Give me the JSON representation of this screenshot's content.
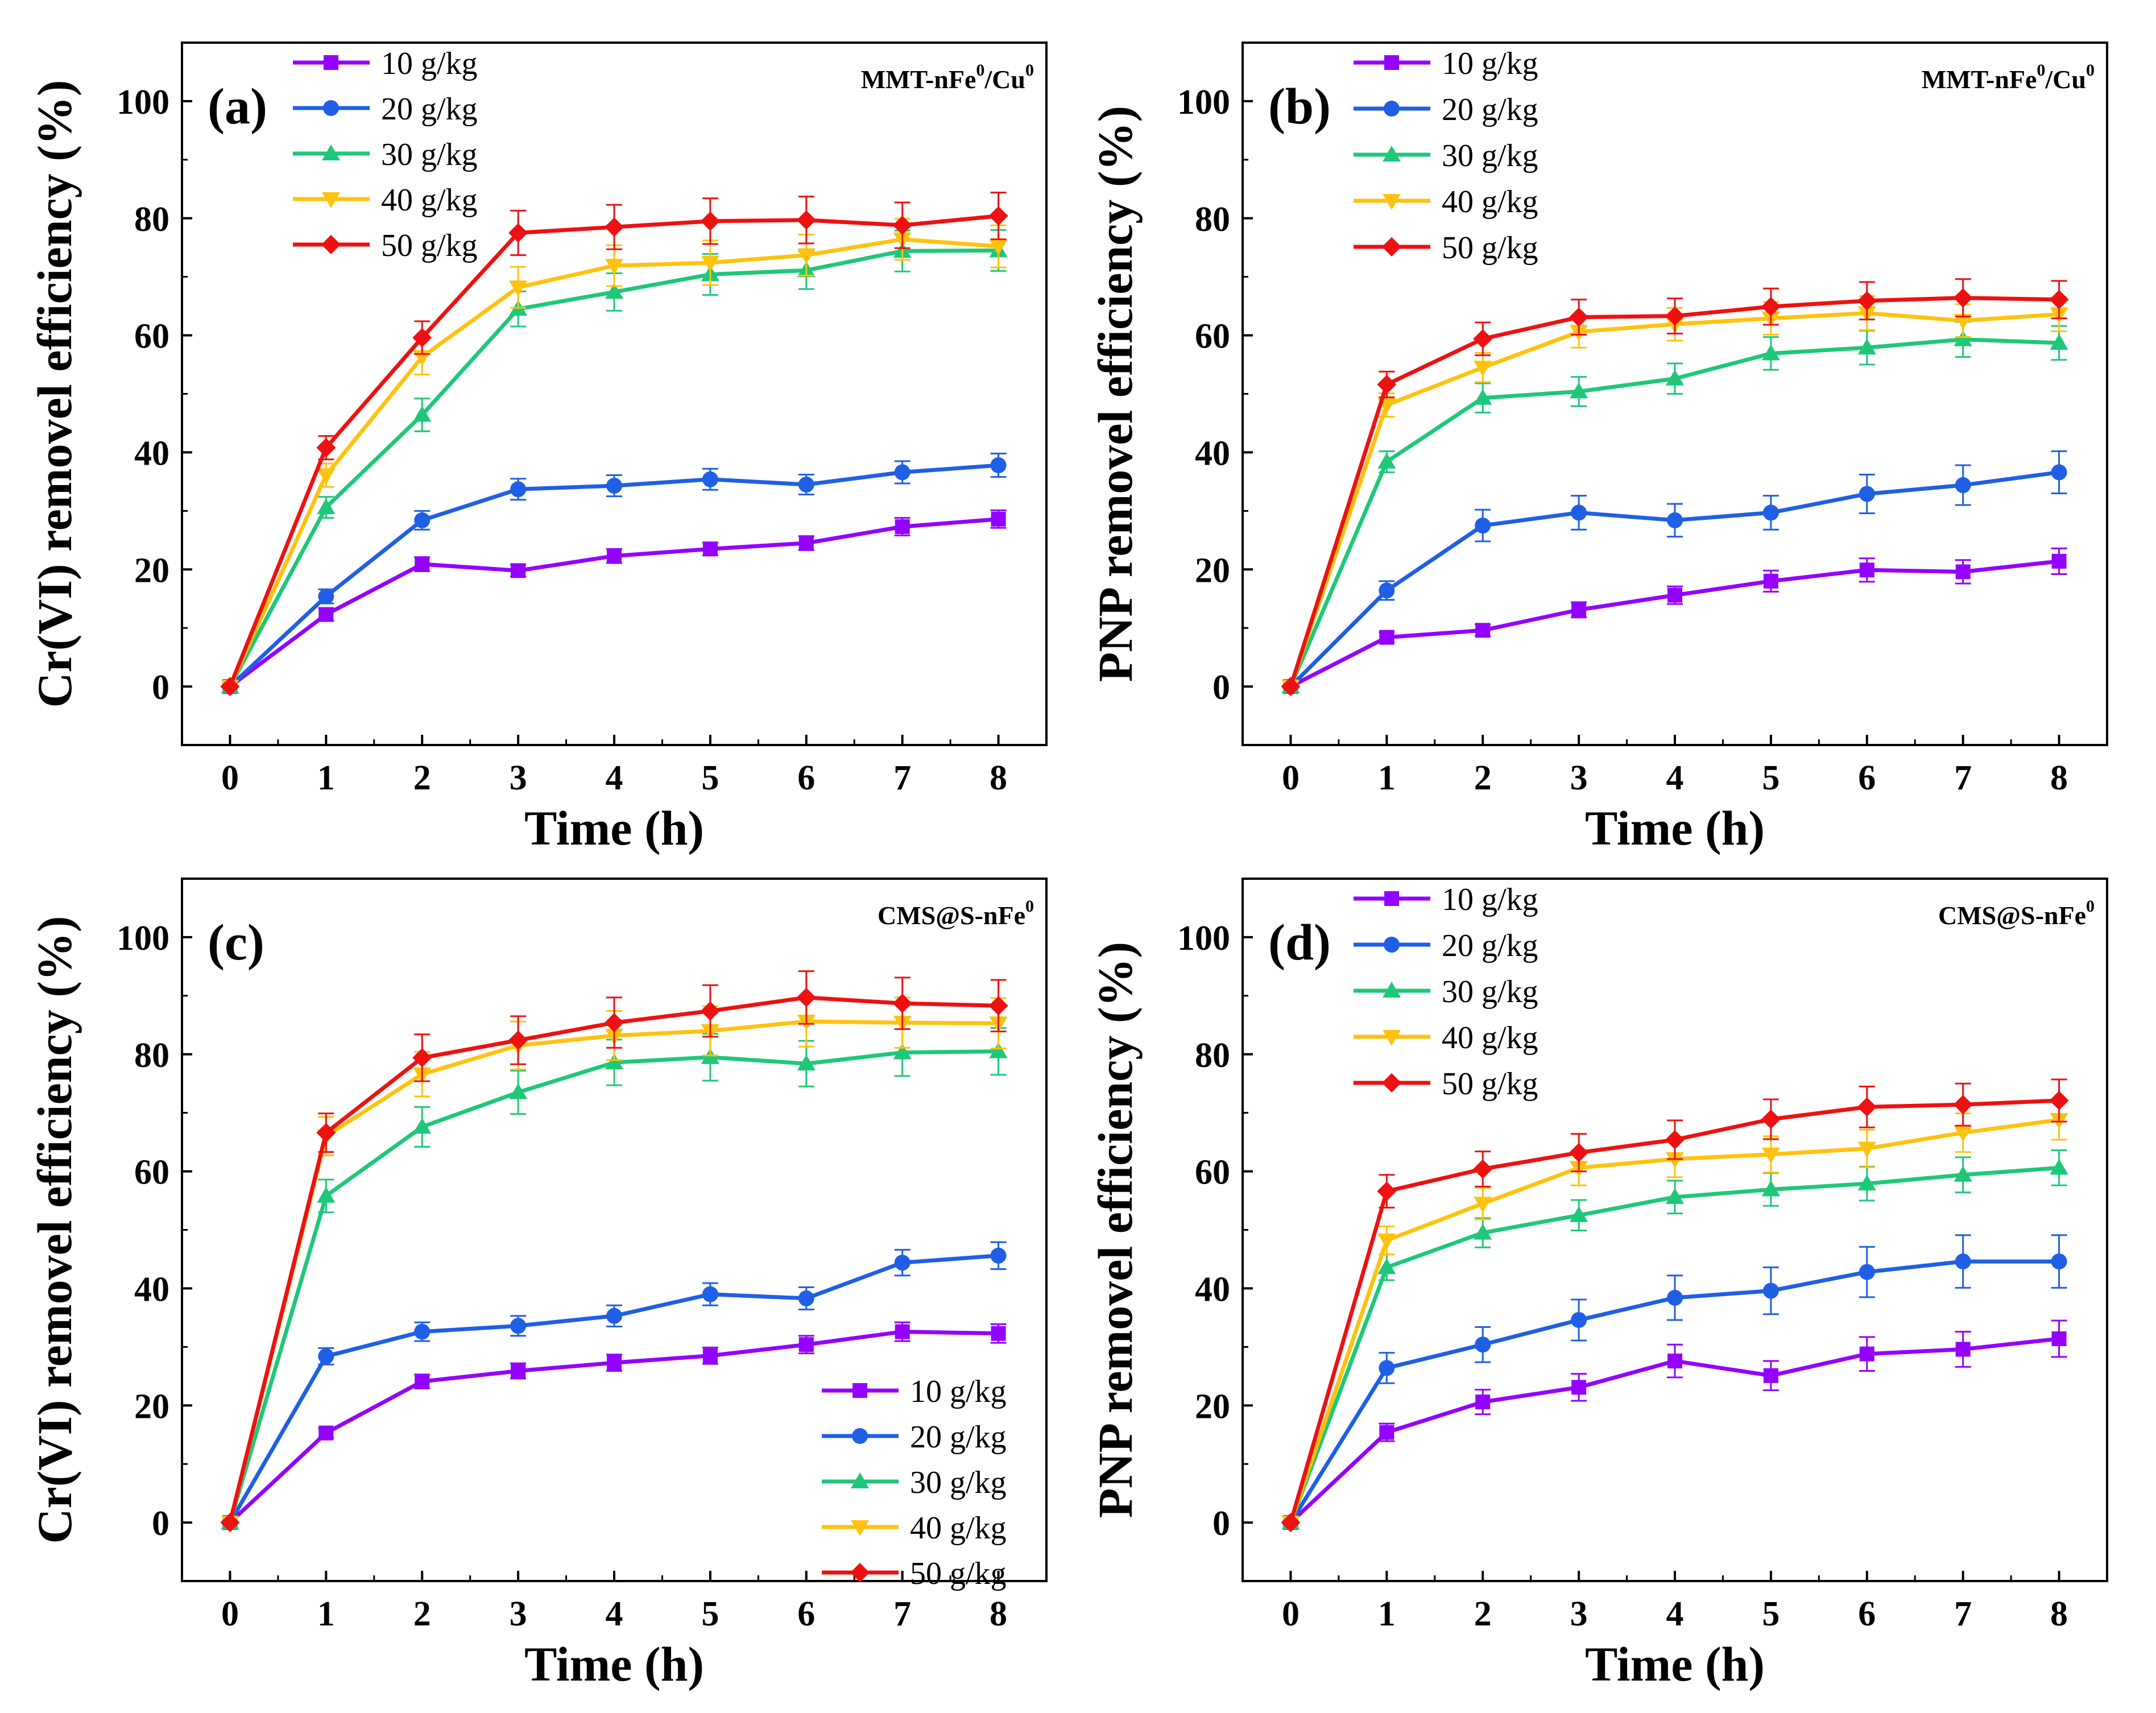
{
  "figure": {
    "legend_labels": [
      "10 g/kg",
      "20 g/kg",
      "30 g/kg",
      "40 g/kg",
      "50 g/kg"
    ],
    "series_colors": [
      "#9400ff",
      "#1f5fe6",
      "#1ec878",
      "#ffc20e",
      "#ee1111"
    ],
    "series_markers": [
      "square-marker",
      "circle-marker",
      "triangle-up-marker",
      "triangle-down-marker",
      "diamond-marker"
    ]
  },
  "panels": [
    {
      "letter": "(a)",
      "material": {
        "base": "MMT-nFe",
        "sup1": "0",
        "mid": "/Cu",
        "sup2": "0"
      },
      "chart_data": {
        "type": "line",
        "x": [
          0,
          1,
          2,
          3,
          4,
          5,
          6,
          7,
          8
        ],
        "xlabel": "Time (h)",
        "ylabel": "Cr(VI) removel efficiency (%)",
        "xlim": [
          -0.5,
          8.5
        ],
        "ylim": [
          -10,
          110
        ],
        "xticks": [
          0,
          1,
          2,
          3,
          4,
          5,
          6,
          7,
          8
        ],
        "yticks": [
          0,
          20,
          40,
          60,
          80,
          100
        ],
        "legend_position": "top-left",
        "series": [
          {
            "name": "10 g/kg",
            "values": [
              0,
              12.3,
              20.9,
              19.8,
              22.3,
              23.5,
              24.5,
              27.3,
              28.6
            ],
            "errors": [
              0,
              1.1,
              1.2,
              1.0,
              1.2,
              1.1,
              1.2,
              1.5,
              1.5
            ]
          },
          {
            "name": "20 g/kg",
            "values": [
              0,
              15.4,
              28.4,
              33.7,
              34.3,
              35.4,
              34.5,
              36.6,
              37.8
            ],
            "errors": [
              0,
              1.2,
              1.6,
              1.8,
              1.8,
              1.8,
              1.7,
              1.9,
              2.0
            ]
          },
          {
            "name": "30 g/kg",
            "values": [
              0,
              30.6,
              46.4,
              64.5,
              67.4,
              70.4,
              71.1,
              74.4,
              74.5
            ],
            "errors": [
              0,
              1.8,
              2.8,
              3.0,
              3.2,
              3.5,
              3.2,
              3.5,
              3.5
            ]
          },
          {
            "name": "40 g/kg",
            "values": [
              0,
              36.1,
              56.3,
              68.2,
              71.9,
              72.4,
              73.7,
              76.4,
              75.2
            ],
            "errors": [
              0,
              2.0,
              3.0,
              3.5,
              3.5,
              3.8,
              3.5,
              3.5,
              3.6
            ]
          },
          {
            "name": "50 g/kg",
            "values": [
              0,
              40.8,
              59.6,
              77.5,
              78.5,
              79.5,
              79.7,
              78.8,
              80.4
            ],
            "errors": [
              0,
              2.0,
              2.8,
              3.8,
              3.8,
              3.9,
              4.0,
              3.9,
              4.0
            ]
          }
        ]
      }
    },
    {
      "letter": "(b)",
      "material": {
        "base": "MMT-nFe",
        "sup1": "0",
        "mid": "/Cu",
        "sup2": "0"
      },
      "chart_data": {
        "type": "line",
        "x": [
          0,
          1,
          2,
          3,
          4,
          5,
          6,
          7,
          8
        ],
        "xlabel": "Time (h)",
        "ylabel": "PNP removel efficiency (%)",
        "xlim": [
          -0.5,
          8.5
        ],
        "ylim": [
          -10,
          110
        ],
        "xticks": [
          0,
          1,
          2,
          3,
          4,
          5,
          6,
          7,
          8
        ],
        "yticks": [
          0,
          20,
          40,
          60,
          80,
          100
        ],
        "legend_position": "top-left",
        "series": [
          {
            "name": "10 g/kg",
            "values": [
              0,
              8.4,
              9.6,
              13.1,
              15.6,
              18.0,
              19.9,
              19.6,
              21.4
            ],
            "errors": [
              0,
              0.9,
              1.0,
              1.3,
              1.5,
              1.8,
              2.0,
              2.0,
              2.2
            ]
          },
          {
            "name": "20 g/kg",
            "values": [
              0,
              16.4,
              27.5,
              29.7,
              28.4,
              29.7,
              32.9,
              34.4,
              36.6
            ],
            "errors": [
              0,
              1.6,
              2.7,
              2.9,
              2.8,
              2.9,
              3.3,
              3.4,
              3.6
            ]
          },
          {
            "name": "30 g/kg",
            "values": [
              0,
              38.4,
              49.3,
              50.4,
              52.6,
              56.9,
              57.9,
              59.3,
              58.7
            ],
            "errors": [
              0,
              1.8,
              2.5,
              2.5,
              2.6,
              2.8,
              2.9,
              3.0,
              2.9
            ]
          },
          {
            "name": "40 g/kg",
            "values": [
              0,
              48.1,
              54.5,
              60.6,
              61.9,
              62.9,
              63.8,
              62.5,
              63.6
            ],
            "errors": [
              0,
              2.0,
              2.5,
              2.7,
              2.8,
              2.8,
              2.9,
              2.8,
              2.9
            ]
          },
          {
            "name": "50 g/kg",
            "values": [
              0,
              51.6,
              59.4,
              63.1,
              63.3,
              64.9,
              65.9,
              66.4,
              66.1
            ],
            "errors": [
              0,
              2.2,
              2.8,
              3.0,
              3.0,
              3.1,
              3.2,
              3.2,
              3.2
            ]
          }
        ]
      }
    },
    {
      "letter": "(c)",
      "material": {
        "base": "CMS@S-nFe",
        "sup1": "0",
        "mid": "",
        "sup2": ""
      },
      "chart_data": {
        "type": "line",
        "x": [
          0,
          1,
          2,
          3,
          4,
          5,
          6,
          7,
          8
        ],
        "xlabel": "Time (h)",
        "ylabel": "Cr(VI) removel efficiency (%)",
        "xlim": [
          -0.5,
          8.5
        ],
        "ylim": [
          -10,
          110
        ],
        "xticks": [
          0,
          1,
          2,
          3,
          4,
          5,
          6,
          7,
          8
        ],
        "yticks": [
          0,
          20,
          40,
          60,
          80,
          100
        ],
        "legend_position": "bottom-right",
        "series": [
          {
            "name": "10 g/kg",
            "values": [
              0,
              15.3,
              24.1,
              25.9,
              27.3,
              28.5,
              30.4,
              32.6,
              32.3
            ],
            "errors": [
              0,
              0.8,
              1.2,
              1.3,
              1.4,
              1.4,
              1.5,
              1.6,
              1.6
            ]
          },
          {
            "name": "20 g/kg",
            "values": [
              0,
              28.4,
              32.6,
              33.6,
              35.3,
              39.0,
              38.3,
              44.4,
              45.6
            ],
            "errors": [
              0,
              1.4,
              1.6,
              1.7,
              1.8,
              1.9,
              1.9,
              2.2,
              2.3
            ]
          },
          {
            "name": "30 g/kg",
            "values": [
              0,
              55.8,
              67.6,
              73.5,
              78.6,
              79.5,
              78.4,
              80.3,
              80.5
            ],
            "errors": [
              0,
              2.8,
              3.4,
              3.7,
              3.9,
              4.0,
              3.9,
              4.0,
              4.0
            ]
          },
          {
            "name": "40 g/kg",
            "values": [
              0,
              66.0,
              76.6,
              81.5,
              83.2,
              84.0,
              85.6,
              85.4,
              85.3
            ],
            "errors": [
              0,
              3.3,
              3.8,
              4.1,
              4.2,
              4.2,
              4.3,
              4.3,
              4.3
            ]
          },
          {
            "name": "50 g/kg",
            "values": [
              0,
              66.6,
              79.4,
              82.4,
              85.4,
              87.4,
              89.7,
              88.7,
              88.3
            ],
            "errors": [
              0,
              3.3,
              4.0,
              4.1,
              4.3,
              4.4,
              4.5,
              4.4,
              4.4
            ]
          }
        ]
      }
    },
    {
      "letter": "(d)",
      "material": {
        "base": "CMS@S-nFe",
        "sup1": "0",
        "mid": "",
        "sup2": ""
      },
      "chart_data": {
        "type": "line",
        "x": [
          0,
          1,
          2,
          3,
          4,
          5,
          6,
          7,
          8
        ],
        "xlabel": "Time (h)",
        "ylabel": "PNP removel efficiency (%)",
        "xlim": [
          -0.5,
          8.5
        ],
        "ylim": [
          -10,
          110
        ],
        "xticks": [
          0,
          1,
          2,
          3,
          4,
          5,
          6,
          7,
          8
        ],
        "yticks": [
          0,
          20,
          40,
          60,
          80,
          100
        ],
        "legend_position": "top-left",
        "series": [
          {
            "name": "10 g/kg",
            "values": [
              0,
              15.4,
              20.6,
              23.1,
              27.6,
              25.1,
              28.8,
              29.6,
              31.4
            ],
            "errors": [
              0,
              1.5,
              2.1,
              2.3,
              2.8,
              2.5,
              2.9,
              3.0,
              3.1
            ]
          },
          {
            "name": "20 g/kg",
            "values": [
              0,
              26.4,
              30.4,
              34.6,
              38.4,
              39.6,
              42.8,
              44.6,
              44.6
            ],
            "errors": [
              0,
              2.6,
              3.0,
              3.5,
              3.8,
              4.0,
              4.3,
              4.5,
              4.5
            ]
          },
          {
            "name": "30 g/kg",
            "values": [
              0,
              43.6,
              49.5,
              52.5,
              55.6,
              56.9,
              57.9,
              59.4,
              60.6
            ],
            "errors": [
              0,
              2.2,
              2.5,
              2.6,
              2.8,
              2.8,
              2.9,
              3.0,
              3.0
            ]
          },
          {
            "name": "40 g/kg",
            "values": [
              0,
              48.2,
              54.5,
              60.6,
              62.1,
              62.9,
              63.9,
              66.6,
              68.8
            ],
            "errors": [
              0,
              2.4,
              2.7,
              3.0,
              3.1,
              3.1,
              3.2,
              3.3,
              3.4
            ]
          },
          {
            "name": "50 g/kg",
            "values": [
              0,
              56.6,
              60.4,
              63.2,
              65.4,
              68.9,
              71.0,
              71.4,
              72.1
            ],
            "errors": [
              0,
              2.8,
              3.0,
              3.2,
              3.3,
              3.4,
              3.5,
              3.6,
              3.6
            ]
          }
        ]
      }
    }
  ]
}
